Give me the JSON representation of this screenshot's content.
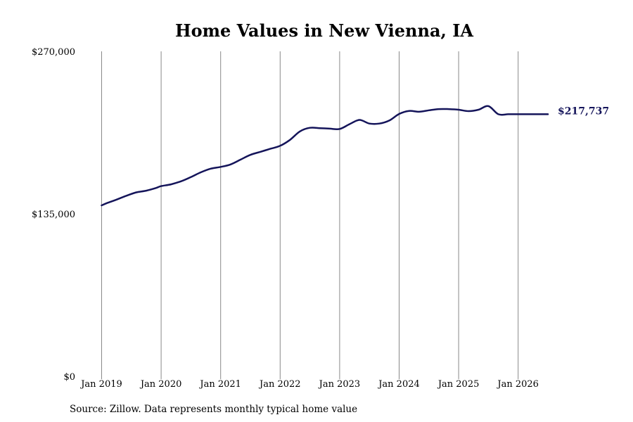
{
  "chart_data": {
    "type": "line",
    "title": "Home Values in New Vienna, IA",
    "source": "Source: Zillow. Data represents monthly typical home value",
    "ylim": [
      0,
      270000
    ],
    "yticks": [
      {
        "value": 0,
        "label": "$0"
      },
      {
        "value": 135000,
        "label": "$135,000"
      },
      {
        "value": 270000,
        "label": "$270,000"
      }
    ],
    "xticks": [
      "Jan 2019",
      "Jan 2020",
      "Jan 2021",
      "Jan 2022",
      "Jan 2023",
      "Jan 2024",
      "Jan 2025",
      "Jan 2026"
    ],
    "grid": "vertical",
    "line_color": "#14145a",
    "end_label": "$217,737",
    "series": [
      {
        "x": [
          "2019-01",
          "2019-02",
          "2019-04",
          "2019-06",
          "2019-08",
          "2019-10",
          "2019-12",
          "2020-01",
          "2020-03",
          "2020-05",
          "2020-07",
          "2020-09",
          "2020-11",
          "2021-01",
          "2021-03",
          "2021-05",
          "2021-07",
          "2021-09",
          "2021-11",
          "2022-01",
          "2022-03",
          "2022-05",
          "2022-07",
          "2022-09",
          "2022-11",
          "2023-01",
          "2023-03",
          "2023-05",
          "2023-07",
          "2023-09",
          "2023-11",
          "2024-01",
          "2024-03",
          "2024-05",
          "2024-07",
          "2024-09",
          "2024-11",
          "2025-01",
          "2025-03",
          "2025-05",
          "2025-07",
          "2025-09",
          "2025-11",
          "2026-01",
          "2026-03",
          "2026-05",
          "2026-07"
        ],
        "values": [
          142000,
          143800,
          146800,
          150000,
          152800,
          154200,
          156500,
          158000,
          159500,
          162000,
          165500,
          169500,
          172500,
          174000,
          176000,
          180000,
          184000,
          186500,
          189000,
          191500,
          196500,
          203500,
          206500,
          206200,
          205800,
          205500,
          209500,
          213000,
          210000,
          210000,
          212500,
          218000,
          220500,
          219800,
          221000,
          222000,
          222000,
          221500,
          220300,
          221500,
          224500,
          217737,
          217737,
          217737,
          217737,
          217737,
          217737
        ]
      }
    ]
  }
}
